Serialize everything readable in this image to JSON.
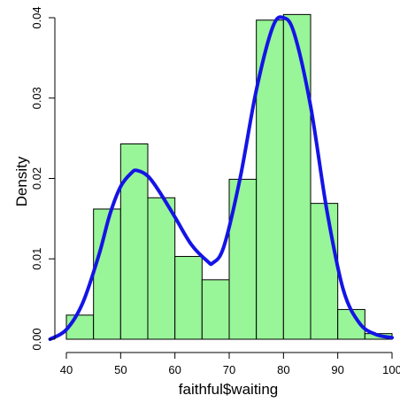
{
  "chart_data": {
    "type": "histogram",
    "xlabel": "faithful$waiting",
    "ylabel": "Density",
    "xlim": [
      40,
      100
    ],
    "ylim": [
      0,
      0.04
    ],
    "x_ticks": [
      "40",
      "50",
      "60",
      "70",
      "80",
      "90",
      "100"
    ],
    "y_ticks": [
      "0.00",
      "0.01",
      "0.02",
      "0.03",
      "0.04"
    ],
    "bins": [
      {
        "from": 40,
        "to": 45,
        "density": 0.003
      },
      {
        "from": 45,
        "to": 50,
        "density": 0.0162
      },
      {
        "from": 50,
        "to": 55,
        "density": 0.0243
      },
      {
        "from": 55,
        "to": 60,
        "density": 0.0176
      },
      {
        "from": 60,
        "to": 65,
        "density": 0.0103
      },
      {
        "from": 65,
        "to": 70,
        "density": 0.0074
      },
      {
        "from": 70,
        "to": 75,
        "density": 0.0199
      },
      {
        "from": 75,
        "to": 80,
        "density": 0.0397
      },
      {
        "from": 80,
        "to": 85,
        "density": 0.0404
      },
      {
        "from": 85,
        "to": 90,
        "density": 0.0169
      },
      {
        "from": 90,
        "to": 95,
        "density": 0.0037
      },
      {
        "from": 95,
        "to": 100,
        "density": 0.0007
      }
    ],
    "density_curve": {
      "x": [
        37,
        40,
        43,
        46,
        48,
        50,
        52,
        53,
        55,
        57,
        60,
        63,
        66,
        67,
        69,
        72,
        75,
        78,
        80,
        82,
        85,
        88,
        91,
        94,
        97,
        100
      ],
      "y": [
        0.0,
        0.0012,
        0.0045,
        0.0105,
        0.0155,
        0.019,
        0.0207,
        0.021,
        0.0203,
        0.0185,
        0.0152,
        0.0118,
        0.0097,
        0.0095,
        0.0115,
        0.02,
        0.031,
        0.0388,
        0.04,
        0.038,
        0.029,
        0.016,
        0.0062,
        0.002,
        0.0006,
        0.0002
      ]
    },
    "colors": {
      "bar_fill": "#98F598",
      "bar_stroke": "#000000",
      "curve": "#1414E6"
    },
    "grid": false
  }
}
